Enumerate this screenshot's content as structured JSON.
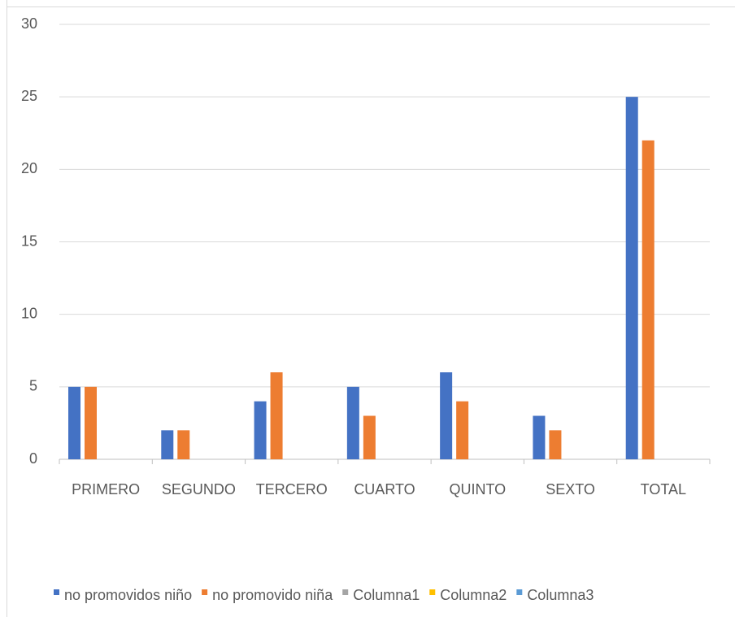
{
  "chart_data": {
    "type": "bar",
    "categories": [
      "PRIMERO",
      "SEGUNDO",
      "TERCERO",
      "CUARTO",
      "QUINTO",
      "SEXTO",
      "TOTAL"
    ],
    "series": [
      {
        "name": "no promovidos niño",
        "color": "#4472c4",
        "values": [
          5,
          2,
          4,
          5,
          6,
          3,
          25
        ]
      },
      {
        "name": "no promovido niña",
        "color": "#ed7d31",
        "values": [
          5,
          2,
          6,
          3,
          4,
          2,
          22
        ]
      },
      {
        "name": "Columna1",
        "color": "#a5a5a5",
        "values": [
          null,
          null,
          null,
          null,
          null,
          null,
          null
        ]
      },
      {
        "name": "Columna2",
        "color": "#ffc000",
        "values": [
          null,
          null,
          null,
          null,
          null,
          null,
          null
        ]
      },
      {
        "name": "Columna3",
        "color": "#5b9bd5",
        "values": [
          null,
          null,
          null,
          null,
          null,
          null,
          null
        ]
      }
    ],
    "ylim": [
      0,
      30
    ],
    "yticks": [
      0,
      5,
      10,
      15,
      20,
      25,
      30
    ],
    "grid": true,
    "legend": "bottom"
  }
}
